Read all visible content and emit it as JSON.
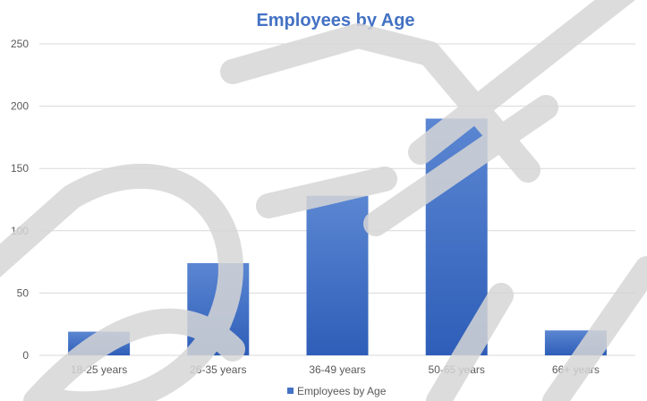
{
  "chart_data": {
    "type": "bar",
    "title": "Employees by Age",
    "categories": [
      "18-25 years",
      "26-35 years",
      "36-49 years",
      "50-65 years",
      "66+ years"
    ],
    "series": [
      {
        "name": "Employees by Age",
        "values": [
          19,
          74,
          128,
          190,
          20
        ]
      }
    ],
    "ylim": [
      0,
      250
    ],
    "yticks": [
      0,
      50,
      100,
      150,
      200,
      250
    ],
    "grid": true,
    "legend": "bottom",
    "colors": {
      "bar_top": "#5B86D2",
      "bar_bottom": "#2E5EB8",
      "grid": "#D9D9D9",
      "title": "#4472C4",
      "watermark": "#D6D6D6"
    }
  },
  "watermark": "DRAFT"
}
